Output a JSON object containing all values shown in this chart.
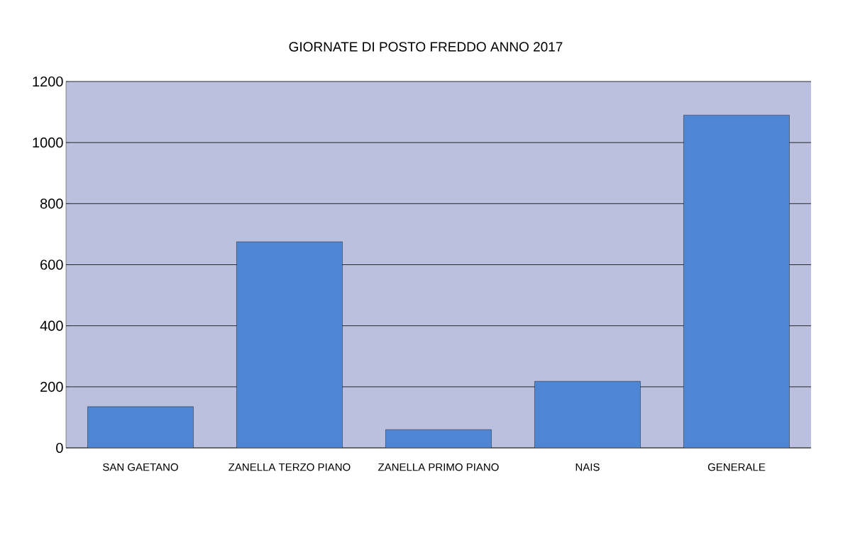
{
  "chart_data": {
    "type": "bar",
    "title": "GIORNATE DI POSTO FREDDO ANNO 2017",
    "categories": [
      "SAN GAETANO",
      "ZANELLA TERZO PIANO",
      "ZANELLA PRIMO PIANO",
      "NAIS",
      "GENERALE"
    ],
    "values": [
      135,
      675,
      60,
      218,
      1090
    ],
    "color": "#4f86d4",
    "ylim": [
      0,
      1200
    ],
    "yticks": [
      0,
      200,
      400,
      600,
      800,
      1000,
      1200
    ],
    "grid": "y"
  }
}
